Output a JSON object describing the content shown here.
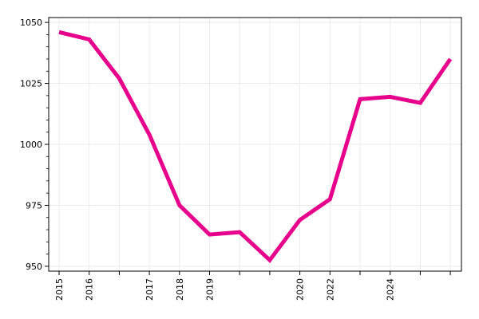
{
  "chart_data": {
    "type": "line",
    "title": "",
    "xlabel": "",
    "ylabel": "",
    "categories": [
      "2015",
      "2016",
      "",
      "2017",
      "2018",
      "2019",
      "",
      "",
      "2020",
      "2022",
      "",
      "2024",
      "",
      ""
    ],
    "series": [
      {
        "name": "",
        "color": "#e6008c",
        "values": [
          1046,
          1043,
          1027,
          1004,
          975,
          963,
          964,
          952.5,
          969,
          977.5,
          1018.5,
          1019.5,
          1017,
          1035
        ]
      }
    ],
    "ylim": [
      948,
      1052
    ],
    "yticks": [
      950,
      975,
      1000,
      1025,
      1050
    ],
    "ytick_labels": [
      "950",
      "975",
      "1000",
      "1025",
      "1050"
    ],
    "grid": true,
    "legend": "none"
  }
}
